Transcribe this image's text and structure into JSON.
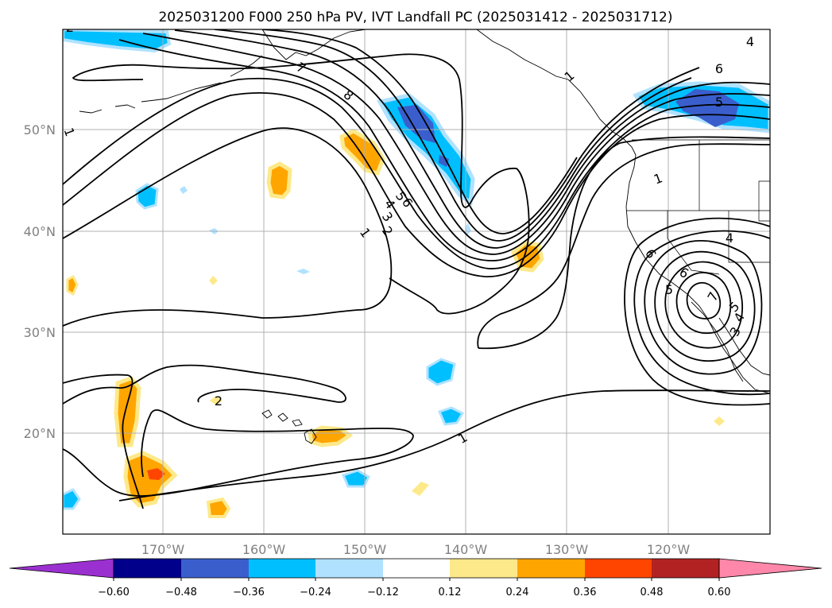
{
  "title": "2025031200 F000 250 hPa PV, IVT Landfall PC (2025031412 - 2025031712)",
  "map": {
    "lon_labels": [
      "170°W",
      "160°W",
      "150°W",
      "140°W",
      "130°W",
      "120°W"
    ],
    "lat_labels": [
      "50°N",
      "40°N",
      "30°N",
      "20°N"
    ]
  },
  "colorbar": {
    "ticks": [
      "−0.60",
      "−0.48",
      "−0.36",
      "−0.24",
      "−0.12",
      "0.12",
      "0.24",
      "0.36",
      "0.48",
      "0.60"
    ],
    "colors": {
      "under": "#9b30d0",
      "bins": [
        "#00008b",
        "#3a5fcd",
        "#00bfff",
        "#b0e2ff",
        "#ffffff",
        "#fee98a",
        "#ffa500",
        "#ff4500",
        "#b22222"
      ],
      "over": "#ff88aa"
    }
  },
  "contour_labels": [
    "1",
    "2",
    "3",
    "4",
    "5",
    "6",
    "7",
    "8",
    "1",
    "2",
    "3",
    "4",
    "5",
    "6",
    "7",
    "2",
    "1",
    "4",
    "1",
    "6",
    "5",
    "6",
    "5",
    "4",
    "1"
  ]
}
